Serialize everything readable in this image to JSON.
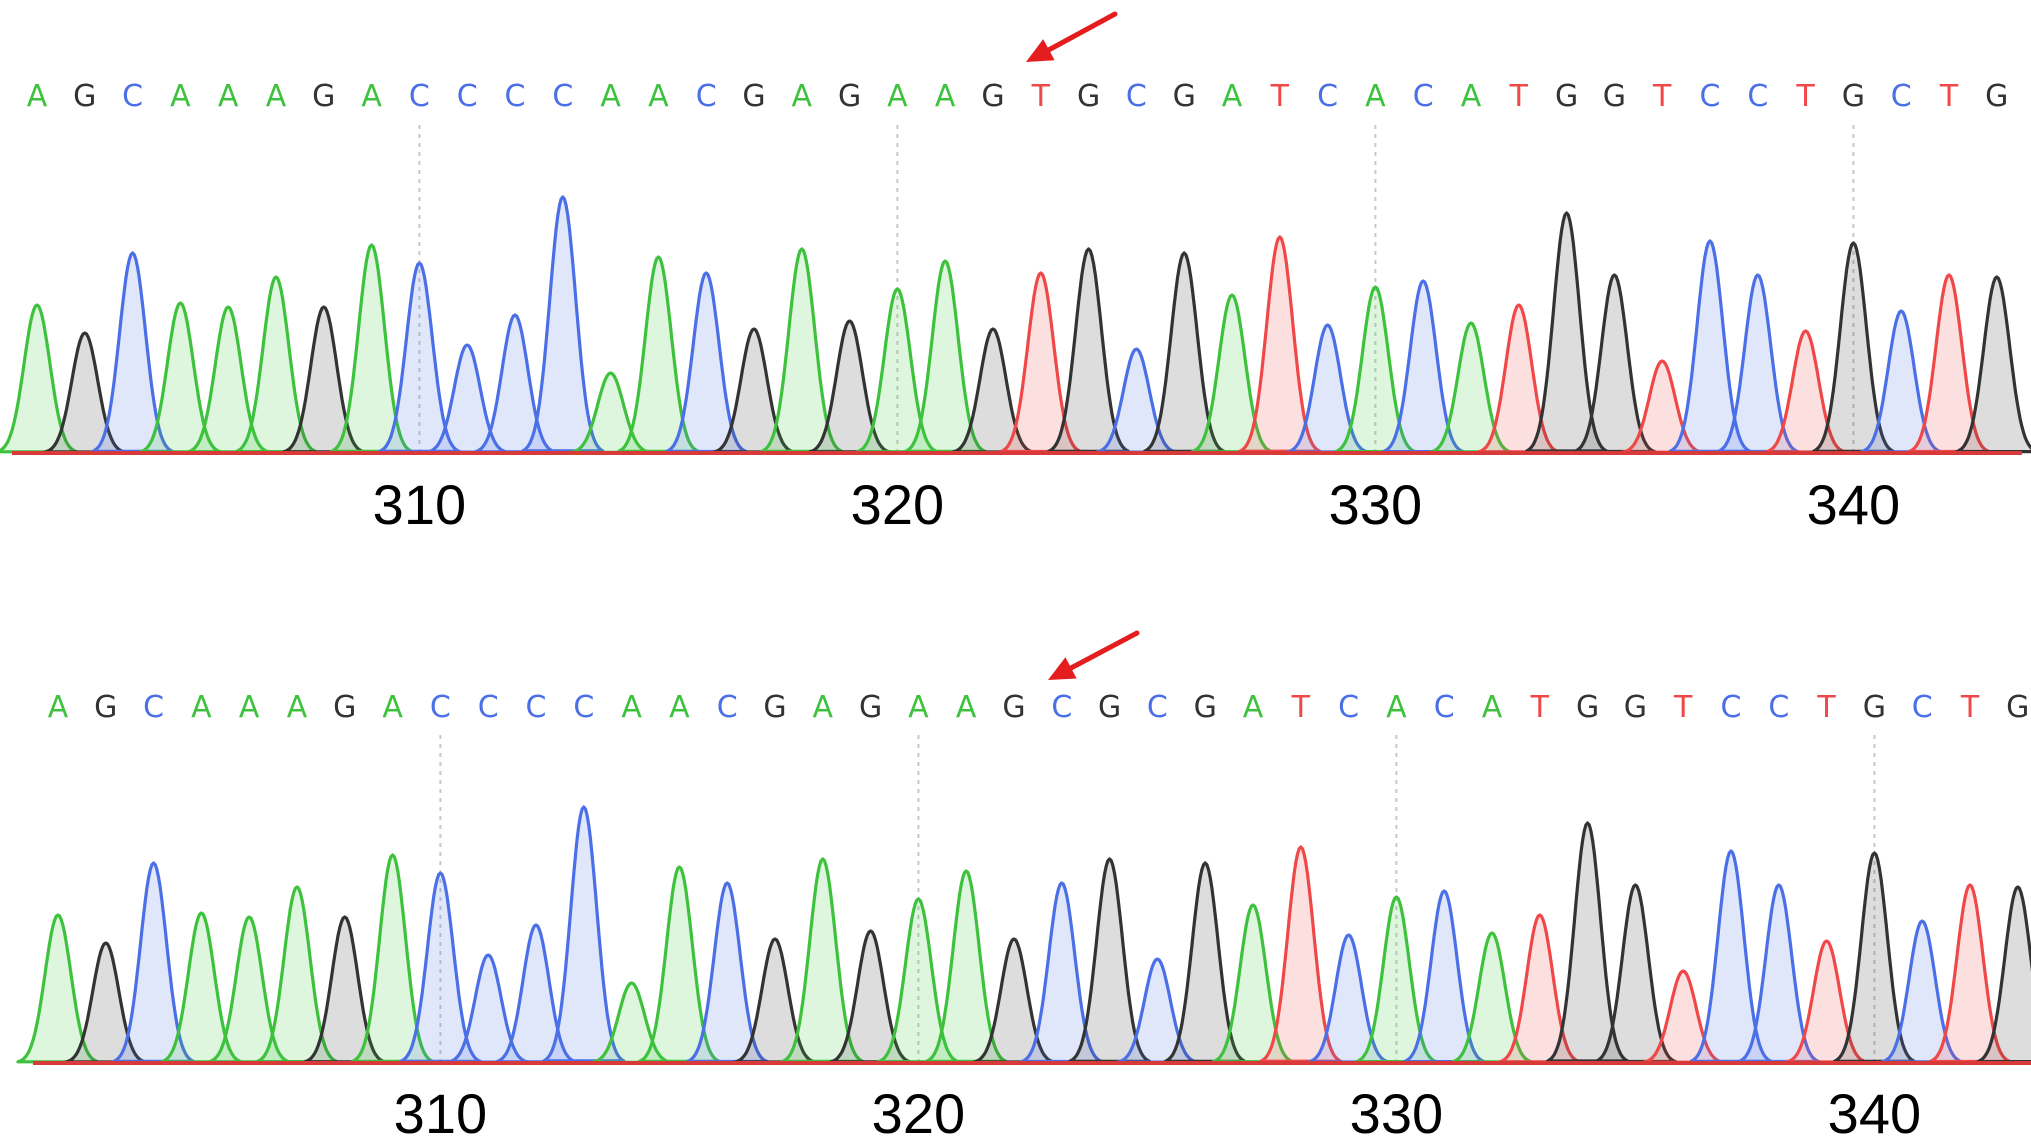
{
  "colors": {
    "A": "#3ec23e",
    "C": "#4b6fe6",
    "G": "#333333",
    "T": "#f04848",
    "arrow": "#e41e1e"
  },
  "chart_data": [
    {
      "type": "chromatogram",
      "sequence": [
        "A",
        "G",
        "C",
        "A",
        "A",
        "A",
        "G",
        "A",
        "C",
        "C",
        "C",
        "C",
        "A",
        "A",
        "C",
        "G",
        "A",
        "G",
        "A",
        "A",
        "G",
        "T",
        "G",
        "C",
        "G",
        "A",
        "T",
        "C",
        "A",
        "C",
        "A",
        "T",
        "G",
        "G",
        "T",
        "C",
        "C",
        "T",
        "G",
        "C",
        "T",
        "G"
      ],
      "first_position": 302,
      "x_ticks": [
        "310",
        "320",
        "330",
        "340"
      ],
      "marked_position": 323,
      "marked_base": "T",
      "peak_heights": [
        0.74,
        0.6,
        1.0,
        0.75,
        0.73,
        0.88,
        0.73,
        1.04,
        0.95,
        0.54,
        0.69,
        1.28,
        0.4,
        0.98,
        0.9,
        0.62,
        1.02,
        0.66,
        0.82,
        0.96,
        0.62,
        0.9,
        1.02,
        0.52,
        1.0,
        0.79,
        1.08,
        0.64,
        0.83,
        0.86,
        0.65,
        0.74,
        1.2,
        0.89,
        0.46,
        1.06,
        0.89,
        0.61,
        1.05,
        0.71,
        0.89,
        0.88
      ]
    },
    {
      "type": "chromatogram",
      "sequence": [
        "A",
        "G",
        "C",
        "A",
        "A",
        "A",
        "G",
        "A",
        "C",
        "C",
        "C",
        "C",
        "A",
        "A",
        "C",
        "G",
        "A",
        "G",
        "A",
        "A",
        "G",
        "C",
        "G",
        "C",
        "G",
        "A",
        "T",
        "C",
        "A",
        "C",
        "A",
        "T",
        "G",
        "G",
        "T",
        "C",
        "C",
        "T",
        "G",
        "C",
        "T",
        "G"
      ],
      "first_position": 302,
      "x_ticks": [
        "310",
        "320",
        "330",
        "340"
      ],
      "marked_position": 323,
      "marked_base": "C",
      "peak_heights": [
        0.74,
        0.6,
        1.0,
        0.75,
        0.73,
        0.88,
        0.73,
        1.04,
        0.95,
        0.54,
        0.69,
        1.28,
        0.4,
        0.98,
        0.9,
        0.62,
        1.02,
        0.66,
        0.82,
        0.96,
        0.62,
        0.9,
        1.02,
        0.52,
        1.0,
        0.79,
        1.08,
        0.64,
        0.83,
        0.86,
        0.65,
        0.74,
        1.2,
        0.89,
        0.46,
        1.06,
        0.89,
        0.61,
        1.05,
        0.71,
        0.89,
        0.88
      ]
    }
  ]
}
